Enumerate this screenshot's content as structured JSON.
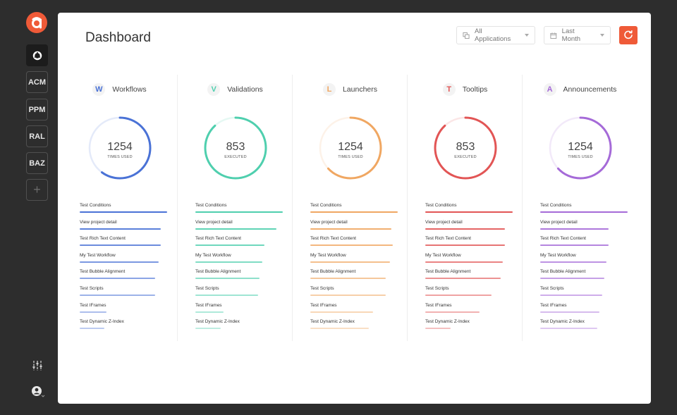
{
  "sidebar": {
    "nav": [
      {
        "label": "ACM"
      },
      {
        "label": "PPM"
      },
      {
        "label": "RAL"
      },
      {
        "label": "BAZ"
      }
    ],
    "add_label": "+"
  },
  "header": {
    "title": "Dashboard",
    "app_filter": "All Applications",
    "date_filter": "Last Month"
  },
  "colors": {
    "brand": "#ef5a38",
    "workflows": "#4a72d6",
    "validations": "#4fcfae",
    "launchers": "#f0a762",
    "tooltips": "#e25555",
    "announcements": "#a56ad8"
  },
  "columns": [
    {
      "key": "workflows",
      "badge": "W",
      "title": "Workflows",
      "value": "1254",
      "sub": "TIMES USED",
      "progress": 0.6,
      "items": [
        {
          "label": "Test Conditions",
          "share": 1.0
        },
        {
          "label": "View project detail",
          "share": 0.93
        },
        {
          "label": "Test Rich Text Content",
          "share": 0.93
        },
        {
          "label": "My Test Workflow",
          "share": 0.9
        },
        {
          "label": "Test Bubble Alignment",
          "share": 0.86
        },
        {
          "label": "Test Scripts",
          "share": 0.86
        },
        {
          "label": "Test IFrames",
          "share": 0.31
        },
        {
          "label": "Test Dynamic Z-Index",
          "share": 0.28
        }
      ]
    },
    {
      "key": "validations",
      "badge": "V",
      "title": "Validations",
      "value": "853",
      "sub": "EXECUTED",
      "progress": 0.88,
      "items": [
        {
          "label": "Test Conditions",
          "share": 1.0
        },
        {
          "label": "View project detail",
          "share": 0.93
        },
        {
          "label": "Test Rich Text Content",
          "share": 0.79
        },
        {
          "label": "My Test Workflow",
          "share": 0.77
        },
        {
          "label": "Test Bubble Alignment",
          "share": 0.73
        },
        {
          "label": "Test Scripts",
          "share": 0.72
        },
        {
          "label": "Test IFrames",
          "share": 0.32
        },
        {
          "label": "Test Dynamic Z-Index",
          "share": 0.29
        }
      ]
    },
    {
      "key": "launchers",
      "badge": "L",
      "title": "Launchers",
      "value": "1254",
      "sub": "TIMES USED",
      "progress": 0.63,
      "items": [
        {
          "label": "Test Conditions",
          "share": 1.0
        },
        {
          "label": "View project detail",
          "share": 0.93
        },
        {
          "label": "Test Rich Text Content",
          "share": 0.94
        },
        {
          "label": "My Test Workflow",
          "share": 0.91
        },
        {
          "label": "Test Bubble Alignment",
          "share": 0.86
        },
        {
          "label": "Test Scripts",
          "share": 0.86
        },
        {
          "label": "Test IFrames",
          "share": 0.72
        },
        {
          "label": "Test Dynamic Z-Index",
          "share": 0.67
        }
      ]
    },
    {
      "key": "tooltips",
      "badge": "T",
      "title": "Tooltips",
      "value": "853",
      "sub": "EXECUTED",
      "progress": 0.88,
      "items": [
        {
          "label": "Test Conditions",
          "share": 1.0
        },
        {
          "label": "View project detail",
          "share": 0.91
        },
        {
          "label": "Test Rich Text Content",
          "share": 0.91
        },
        {
          "label": "My Test Workflow",
          "share": 0.89
        },
        {
          "label": "Test Bubble Alignment",
          "share": 0.86
        },
        {
          "label": "Test Scripts",
          "share": 0.76
        },
        {
          "label": "Test IFrames",
          "share": 0.62
        },
        {
          "label": "Test Dynamic Z-Index",
          "share": 0.29
        }
      ]
    },
    {
      "key": "announcements",
      "badge": "A",
      "title": "Announcements",
      "value": "1254",
      "sub": "TIMES USED",
      "progress": 0.63,
      "items": [
        {
          "label": "Test Conditions",
          "share": 1.0
        },
        {
          "label": "View project detail",
          "share": 0.78
        },
        {
          "label": "Test Rich Text Content",
          "share": 0.78
        },
        {
          "label": "My Test Workflow",
          "share": 0.76
        },
        {
          "label": "Test Bubble Alignment",
          "share": 0.73
        },
        {
          "label": "Test Scripts",
          "share": 0.71
        },
        {
          "label": "Test IFrames",
          "share": 0.68
        },
        {
          "label": "Test Dynamic Z-Index",
          "share": 0.65
        }
      ]
    }
  ]
}
